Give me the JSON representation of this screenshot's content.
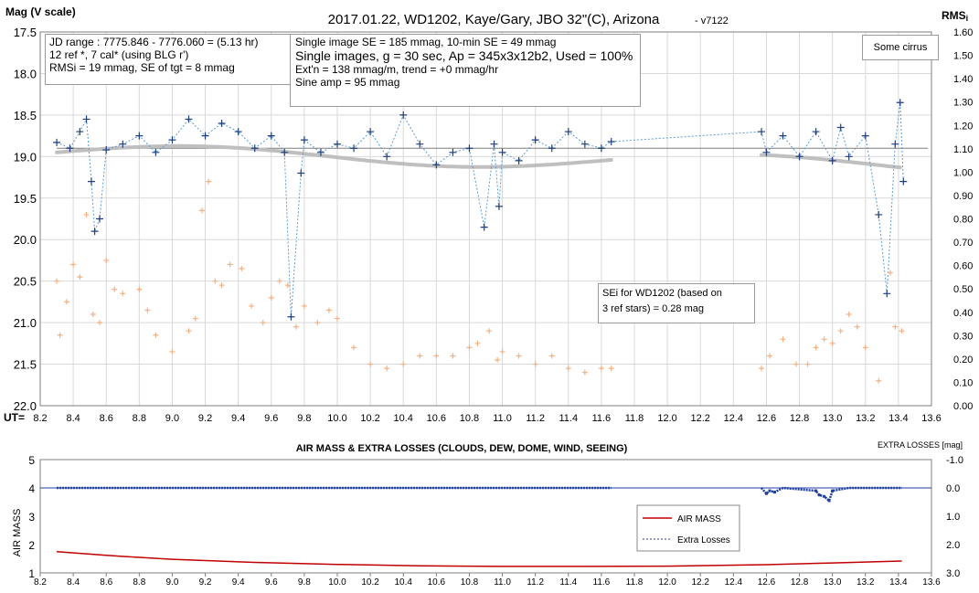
{
  "chart_data": [
    {
      "type": "scatter",
      "title": "2017.01.22,  WD1202, Kaye/Gary, JBO 32\"(C), Arizona",
      "version": "- v7122",
      "ylabel_left": "Mag (V scale)",
      "ylabel_right": "RMS",
      "ylabel_right_sub": "i",
      "xlabel": "UT=",
      "xlim": [
        8.2,
        13.6
      ],
      "xticks": [
        "8.2",
        "8.4",
        "8.6",
        "8.8",
        "9.0",
        "9.2",
        "9.4",
        "9.6",
        "9.8",
        "10.0",
        "10.2",
        "10.4",
        "10.6",
        "10.8",
        "11.0",
        "11.2",
        "11.4",
        "11.6",
        "11.8",
        "12.0",
        "12.2",
        "12.4",
        "12.6",
        "12.8",
        "13.0",
        "13.2",
        "13.4",
        "13.6"
      ],
      "ylim_left": [
        17.5,
        22.0
      ],
      "yticks_left": [
        "17.5",
        "18.0",
        "18.5",
        "19.0",
        "19.5",
        "20.0",
        "20.5",
        "21.0",
        "21.5",
        "22.0"
      ],
      "ylim_right": [
        0.0,
        1.6
      ],
      "yticks_right": [
        "1.60",
        "1.50",
        "1.40",
        "1.30",
        "1.20",
        "1.10",
        "1.00",
        "0.90",
        "0.80",
        "0.70",
        "0.60",
        "0.50",
        "0.40",
        "0.30",
        "0.20",
        "0.10",
        "0.00"
      ],
      "reference_line_y": 18.9,
      "grid": true,
      "segments": [
        [
          8.3,
          11.66
        ],
        [
          12.57,
          13.42
        ]
      ],
      "series": [
        {
          "name": "",
          "marker": "+",
          "color": "#1f3f7f",
          "points": [
            [
              8.3,
              18.83
            ],
            [
              8.38,
              18.9
            ],
            [
              8.44,
              18.7
            ],
            [
              8.48,
              18.55
            ],
            [
              8.51,
              19.3
            ],
            [
              8.53,
              19.9
            ],
            [
              8.56,
              19.75
            ],
            [
              8.6,
              18.92
            ],
            [
              8.7,
              18.85
            ],
            [
              8.8,
              18.75
            ],
            [
              8.9,
              18.95
            ],
            [
              9.0,
              18.8
            ],
            [
              9.1,
              18.55
            ],
            [
              9.2,
              18.75
            ],
            [
              9.3,
              18.6
            ],
            [
              9.4,
              18.7
            ],
            [
              9.5,
              18.9
            ],
            [
              9.6,
              18.75
            ],
            [
              9.68,
              18.95
            ],
            [
              9.72,
              20.93
            ],
            [
              9.78,
              19.2
            ],
            [
              9.8,
              18.8
            ],
            [
              9.9,
              18.95
            ],
            [
              10.0,
              18.85
            ],
            [
              10.1,
              18.9
            ],
            [
              10.2,
              18.7
            ],
            [
              10.3,
              19.0
            ],
            [
              10.4,
              18.5
            ],
            [
              10.5,
              18.85
            ],
            [
              10.6,
              19.1
            ],
            [
              10.7,
              18.95
            ],
            [
              10.8,
              18.9
            ],
            [
              10.89,
              19.85
            ],
            [
              10.95,
              18.85
            ],
            [
              10.98,
              19.6
            ],
            [
              11.0,
              18.95
            ],
            [
              11.1,
              19.05
            ],
            [
              11.2,
              18.8
            ],
            [
              11.3,
              18.9
            ],
            [
              11.4,
              18.7
            ],
            [
              11.5,
              18.85
            ],
            [
              11.6,
              18.9
            ],
            [
              11.66,
              18.82
            ],
            [
              12.57,
              18.7
            ],
            [
              12.6,
              18.95
            ],
            [
              12.7,
              18.75
            ],
            [
              12.8,
              19.0
            ],
            [
              12.9,
              18.7
            ],
            [
              13.0,
              19.05
            ],
            [
              13.05,
              18.65
            ],
            [
              13.1,
              19.0
            ],
            [
              13.2,
              18.75
            ],
            [
              13.28,
              19.7
            ],
            [
              13.33,
              20.65
            ],
            [
              13.38,
              18.85
            ],
            [
              13.41,
              18.35
            ],
            [
              13.43,
              19.3
            ]
          ]
        },
        {
          "name": "",
          "marker": "+",
          "color": "#f4b183",
          "points": [
            [
              8.3,
              20.5
            ],
            [
              8.32,
              21.15
            ],
            [
              8.36,
              20.75
            ],
            [
              8.4,
              20.3
            ],
            [
              8.44,
              20.45
            ],
            [
              8.48,
              19.7
            ],
            [
              8.52,
              20.9
            ],
            [
              8.56,
              21.0
            ],
            [
              8.6,
              20.25
            ],
            [
              8.65,
              20.6
            ],
            [
              8.7,
              20.65
            ],
            [
              8.8,
              20.6
            ],
            [
              8.85,
              20.85
            ],
            [
              8.9,
              21.15
            ],
            [
              9.0,
              21.35
            ],
            [
              9.1,
              21.1
            ],
            [
              9.14,
              20.95
            ],
            [
              9.18,
              19.65
            ],
            [
              9.22,
              19.3
            ],
            [
              9.26,
              20.5
            ],
            [
              9.3,
              20.55
            ],
            [
              9.35,
              20.3
            ],
            [
              9.42,
              20.35
            ],
            [
              9.48,
              20.8
            ],
            [
              9.55,
              21.0
            ],
            [
              9.6,
              20.7
            ],
            [
              9.65,
              20.5
            ],
            [
              9.7,
              20.55
            ],
            [
              9.75,
              21.05
            ],
            [
              9.8,
              20.8
            ],
            [
              9.88,
              21.0
            ],
            [
              9.95,
              20.85
            ],
            [
              10.0,
              20.95
            ],
            [
              10.1,
              21.3
            ],
            [
              10.2,
              21.5
            ],
            [
              10.3,
              21.55
            ],
            [
              10.4,
              21.5
            ],
            [
              10.5,
              21.4
            ],
            [
              10.6,
              21.4
            ],
            [
              10.7,
              21.4
            ],
            [
              10.8,
              21.3
            ],
            [
              10.85,
              21.25
            ],
            [
              10.92,
              21.1
            ],
            [
              10.97,
              21.45
            ],
            [
              11.0,
              21.35
            ],
            [
              11.1,
              21.4
            ],
            [
              11.2,
              21.5
            ],
            [
              11.3,
              21.4
            ],
            [
              11.4,
              21.55
            ],
            [
              11.5,
              21.6
            ],
            [
              11.6,
              21.55
            ],
            [
              11.66,
              21.55
            ],
            [
              12.57,
              21.55
            ],
            [
              12.62,
              21.4
            ],
            [
              12.7,
              21.2
            ],
            [
              12.78,
              21.5
            ],
            [
              12.85,
              21.5
            ],
            [
              12.9,
              21.3
            ],
            [
              12.95,
              21.2
            ],
            [
              13.0,
              21.25
            ],
            [
              13.05,
              21.1
            ],
            [
              13.1,
              20.9
            ],
            [
              13.15,
              21.05
            ],
            [
              13.2,
              21.3
            ],
            [
              13.28,
              21.7
            ],
            [
              13.35,
              20.4
            ],
            [
              13.38,
              21.05
            ],
            [
              13.42,
              21.1
            ]
          ]
        }
      ]
    },
    {
      "type": "line",
      "title": "AIR MASS & EXTRA LOSSES (CLOUDS, DEW, DOME, WIND, SEEING)",
      "ylabel_left": "AIR MASS",
      "ylabel_right": "EXTRA LOSSES [mag]",
      "xlim": [
        8.2,
        13.6
      ],
      "xticks": [
        "8.2",
        "8.4",
        "8.6",
        "8.8",
        "9.0",
        "9.2",
        "9.4",
        "9.6",
        "9.8",
        "10.0",
        "10.2",
        "10.4",
        "10.6",
        "10.8",
        "11.0",
        "11.2",
        "11.4",
        "11.6",
        "11.8",
        "12.0",
        "12.2",
        "12.4",
        "12.6",
        "12.8",
        "13.0",
        "13.2",
        "13.4",
        "13.6"
      ],
      "ylim_left": [
        1,
        5
      ],
      "yticks_left": [
        "5",
        "4",
        "3",
        "2",
        "1"
      ],
      "ylim_right": [
        3.0,
        -1.0
      ],
      "yticks_right": [
        "-1.0",
        "0.0",
        "1.0",
        "2.0",
        "3.0"
      ],
      "legend_position": "right-middle",
      "series": [
        {
          "name": "AIR MASS",
          "color": "#c00000",
          "x": [
            8.3,
            8.6,
            9.0,
            9.5,
            10.0,
            10.5,
            11.0,
            11.5,
            12.0,
            12.6,
            13.0,
            13.42
          ],
          "y": [
            1.75,
            1.62,
            1.48,
            1.37,
            1.3,
            1.25,
            1.23,
            1.23,
            1.24,
            1.29,
            1.35,
            1.42
          ]
        },
        {
          "name": "Extra Losses",
          "color": "#1f3f9f",
          "x": [
            8.3,
            9.0,
            10.0,
            11.0,
            11.66,
            12.57,
            12.6,
            12.62,
            12.65,
            12.7,
            12.9,
            12.92,
            12.95,
            12.98,
            13.0,
            13.1,
            13.42
          ],
          "y": [
            0.0,
            0.0,
            0.0,
            0.0,
            0.0,
            0.0,
            0.2,
            0.1,
            0.15,
            0.0,
            0.1,
            0.25,
            0.3,
            0.45,
            0.1,
            0.0,
            0.0
          ]
        }
      ]
    }
  ],
  "text_boxes": {
    "info_left": [
      "JD range  : 7775.846 - 7776.060  = (5.13 hr)",
      "12 ref *, 7 cal* (using BLG r')",
      "RMSi = 19 mmag, SE of tgt = 8 mmag"
    ],
    "info_mid_line1": "Single image SE = 185 mmag, 10-min SE = 49 mmag",
    "info_mid_line2": "Single images, g = 30 sec, Ap = 345x3x12b2, Used = 100%",
    "info_mid_rest": [
      "Ext'n = 138 mmag/m, trend = +0 mmag/hr",
      "Sine amp = 95 mmag"
    ],
    "sky_note": "Some cirrus",
    "se_note": [
      "SEi for WD1202 (based on",
      "3 ref stars) = 0.28 mag"
    ]
  }
}
